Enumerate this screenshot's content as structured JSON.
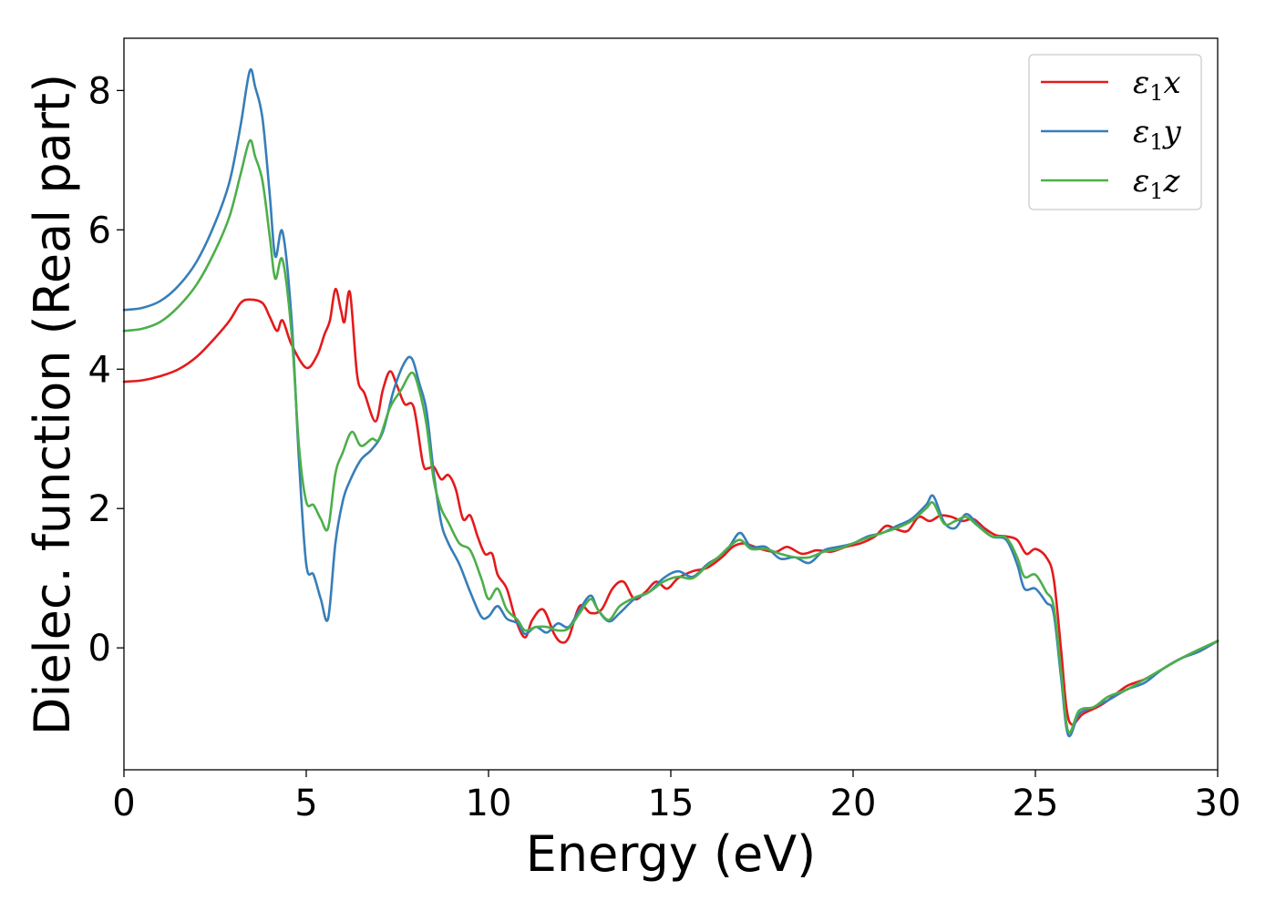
{
  "chart_data": {
    "type": "line",
    "title": "",
    "xlabel": "Energy (eV)",
    "ylabel": "Dielec. function (Real part)",
    "xlim": [
      0,
      30
    ],
    "ylim": [
      -1.75,
      8.75
    ],
    "xticks": [
      0,
      5,
      10,
      15,
      20,
      25,
      30
    ],
    "yticks": [
      0,
      2,
      4,
      6,
      8
    ],
    "grid": false,
    "legend_position": "top-right",
    "series": [
      {
        "name": "ε₁x",
        "legend_base": "ε",
        "legend_sub": "1",
        "legend_var": "x",
        "color": "#e41a1c",
        "x": [
          0,
          0.5,
          1.0,
          1.5,
          2.0,
          2.5,
          2.9,
          3.2,
          3.45,
          3.8,
          4.0,
          4.2,
          4.35,
          4.6,
          5.0,
          5.3,
          5.5,
          5.65,
          5.8,
          5.95,
          6.05,
          6.2,
          6.4,
          6.6,
          6.9,
          7.1,
          7.3,
          7.5,
          7.7,
          7.95,
          8.2,
          8.35,
          8.5,
          8.7,
          8.9,
          9.1,
          9.3,
          9.5,
          9.7,
          9.9,
          10.1,
          10.25,
          10.5,
          10.75,
          11.0,
          11.2,
          11.5,
          11.8,
          12.0,
          12.2,
          12.5,
          12.8,
          13.1,
          13.4,
          13.7,
          14.0,
          14.3,
          14.6,
          14.9,
          15.2,
          15.6,
          16.0,
          16.4,
          16.7,
          17.0,
          17.3,
          17.6,
          17.9,
          18.2,
          18.6,
          19.0,
          19.4,
          19.8,
          20.2,
          20.6,
          20.9,
          21.2,
          21.5,
          21.8,
          22.1,
          22.4,
          22.7,
          23.0,
          23.3,
          23.6,
          23.9,
          24.2,
          24.5,
          24.75,
          25.0,
          25.3,
          25.5,
          25.7,
          25.85,
          26.0,
          26.3,
          26.7,
          27.0,
          27.5,
          28.0,
          28.5,
          29.0,
          29.5,
          30.0
        ],
        "y": [
          3.82,
          3.84,
          3.9,
          4.0,
          4.18,
          4.45,
          4.7,
          4.95,
          5.0,
          4.95,
          4.75,
          4.55,
          4.7,
          4.35,
          4.02,
          4.2,
          4.5,
          4.7,
          5.15,
          4.85,
          4.68,
          5.1,
          3.9,
          3.65,
          3.25,
          3.7,
          3.97,
          3.75,
          3.5,
          3.45,
          2.65,
          2.58,
          2.6,
          2.42,
          2.48,
          2.28,
          1.85,
          1.9,
          1.6,
          1.35,
          1.35,
          1.05,
          0.85,
          0.4,
          0.15,
          0.4,
          0.55,
          0.2,
          0.08,
          0.15,
          0.6,
          0.5,
          0.55,
          0.85,
          0.95,
          0.7,
          0.8,
          0.95,
          0.85,
          1.0,
          1.1,
          1.15,
          1.3,
          1.45,
          1.5,
          1.45,
          1.4,
          1.38,
          1.45,
          1.35,
          1.4,
          1.38,
          1.45,
          1.5,
          1.6,
          1.75,
          1.7,
          1.68,
          1.88,
          1.82,
          1.9,
          1.88,
          1.82,
          1.85,
          1.72,
          1.62,
          1.6,
          1.55,
          1.35,
          1.42,
          1.3,
          1.0,
          0.0,
          -0.85,
          -1.1,
          -0.95,
          -0.85,
          -0.75,
          -0.55,
          -0.45,
          -0.3,
          -0.15,
          -0.05,
          0.1
        ]
      },
      {
        "name": "ε₁y",
        "legend_base": "ε",
        "legend_sub": "1",
        "legend_var": "y",
        "color": "#377eb8",
        "x": [
          0,
          0.5,
          1.0,
          1.5,
          2.0,
          2.5,
          2.9,
          3.2,
          3.45,
          3.6,
          3.8,
          4.0,
          4.15,
          4.35,
          4.6,
          4.8,
          5.0,
          5.2,
          5.4,
          5.6,
          5.8,
          6.0,
          6.2,
          6.5,
          6.8,
          7.1,
          7.4,
          7.7,
          7.9,
          8.1,
          8.3,
          8.5,
          8.7,
          8.9,
          9.2,
          9.5,
          9.8,
          10.0,
          10.25,
          10.5,
          10.8,
          11.0,
          11.3,
          11.6,
          11.9,
          12.2,
          12.5,
          12.8,
          13.0,
          13.3,
          13.6,
          14.0,
          14.4,
          14.8,
          15.2,
          15.6,
          16.0,
          16.3,
          16.6,
          16.9,
          17.2,
          17.6,
          18.0,
          18.4,
          18.8,
          19.2,
          19.6,
          20.0,
          20.4,
          20.8,
          21.2,
          21.6,
          22.0,
          22.2,
          22.5,
          22.8,
          23.1,
          23.4,
          23.8,
          24.2,
          24.5,
          24.7,
          25.0,
          25.3,
          25.5,
          25.7,
          25.9,
          26.2,
          26.6,
          27.0,
          27.5,
          28.0,
          28.5,
          29.0,
          29.5,
          30.0
        ],
        "y": [
          4.85,
          4.88,
          4.98,
          5.2,
          5.55,
          6.1,
          6.7,
          7.5,
          8.28,
          8.05,
          7.6,
          6.5,
          5.62,
          5.97,
          4.7,
          2.7,
          1.2,
          1.05,
          0.7,
          0.42,
          1.5,
          2.1,
          2.4,
          2.7,
          2.85,
          3.1,
          3.7,
          4.1,
          4.15,
          3.8,
          3.4,
          2.5,
          1.8,
          1.5,
          1.2,
          0.8,
          0.45,
          0.45,
          0.6,
          0.42,
          0.35,
          0.2,
          0.3,
          0.22,
          0.35,
          0.3,
          0.55,
          0.75,
          0.55,
          0.38,
          0.5,
          0.7,
          0.8,
          1.0,
          1.1,
          1.02,
          1.2,
          1.3,
          1.45,
          1.65,
          1.45,
          1.45,
          1.28,
          1.3,
          1.22,
          1.4,
          1.45,
          1.5,
          1.6,
          1.65,
          1.75,
          1.85,
          2.05,
          2.18,
          1.8,
          1.72,
          1.92,
          1.78,
          1.6,
          1.55,
          1.2,
          0.85,
          0.85,
          0.65,
          0.5,
          -0.4,
          -1.25,
          -0.95,
          -0.85,
          -0.75,
          -0.6,
          -0.5,
          -0.3,
          -0.15,
          -0.05,
          0.1
        ]
      },
      {
        "name": "ε₁z",
        "legend_base": "ε",
        "legend_sub": "1",
        "legend_var": "z",
        "color": "#4daf4a",
        "x": [
          0,
          0.5,
          1.0,
          1.5,
          2.0,
          2.5,
          2.9,
          3.2,
          3.45,
          3.6,
          3.8,
          4.0,
          4.15,
          4.35,
          4.6,
          4.8,
          5.0,
          5.2,
          5.4,
          5.6,
          5.8,
          6.0,
          6.25,
          6.5,
          6.8,
          7.0,
          7.3,
          7.6,
          7.9,
          8.1,
          8.3,
          8.5,
          8.7,
          8.9,
          9.2,
          9.5,
          9.8,
          10.0,
          10.25,
          10.5,
          10.8,
          11.0,
          11.3,
          11.6,
          11.9,
          12.2,
          12.5,
          12.8,
          13.0,
          13.3,
          13.6,
          14.0,
          14.4,
          14.8,
          15.2,
          15.6,
          16.0,
          16.3,
          16.6,
          16.9,
          17.2,
          17.6,
          18.0,
          18.4,
          18.8,
          19.2,
          19.6,
          20.0,
          20.4,
          20.8,
          21.2,
          21.6,
          22.0,
          22.2,
          22.5,
          22.8,
          23.1,
          23.4,
          23.8,
          24.2,
          24.5,
          24.7,
          25.0,
          25.3,
          25.5,
          25.7,
          25.9,
          26.2,
          26.6,
          27.0,
          27.5,
          28.0,
          28.5,
          29.0,
          29.5,
          30.0
        ],
        "y": [
          4.55,
          4.58,
          4.68,
          4.9,
          5.22,
          5.7,
          6.2,
          6.8,
          7.28,
          7.05,
          6.7,
          5.9,
          5.3,
          5.57,
          4.5,
          2.9,
          2.1,
          2.05,
          1.85,
          1.72,
          2.5,
          2.8,
          3.1,
          2.9,
          3.0,
          3.0,
          3.45,
          3.7,
          3.95,
          3.7,
          3.2,
          2.4,
          2.0,
          1.8,
          1.5,
          1.4,
          1.0,
          0.7,
          0.85,
          0.55,
          0.4,
          0.25,
          0.3,
          0.3,
          0.25,
          0.28,
          0.5,
          0.7,
          0.55,
          0.4,
          0.6,
          0.72,
          0.8,
          0.95,
          1.02,
          1.0,
          1.18,
          1.3,
          1.45,
          1.55,
          1.42,
          1.42,
          1.35,
          1.3,
          1.3,
          1.38,
          1.42,
          1.5,
          1.58,
          1.65,
          1.72,
          1.82,
          2.0,
          2.08,
          1.78,
          1.82,
          1.88,
          1.76,
          1.6,
          1.58,
          1.3,
          1.02,
          1.05,
          0.8,
          0.6,
          -0.3,
          -1.2,
          -0.9,
          -0.85,
          -0.7,
          -0.6,
          -0.45,
          -0.3,
          -0.15,
          -0.02,
          0.1
        ]
      }
    ]
  }
}
